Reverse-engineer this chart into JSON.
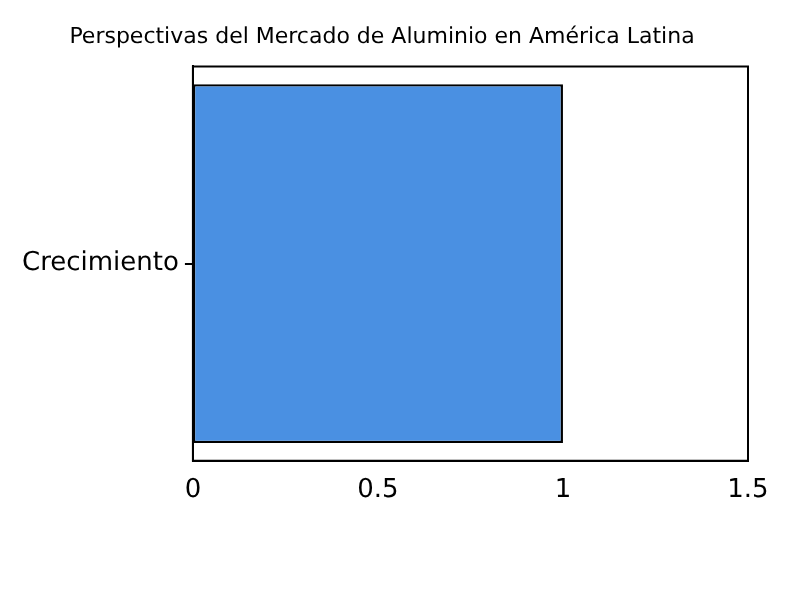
{
  "chart_data": {
    "type": "bar",
    "orientation": "horizontal",
    "title": "Perspectivas del Mercado de Aluminio en América Latina",
    "categories": [
      "Crecimiento"
    ],
    "values": [
      1
    ],
    "color": "#4a90e2",
    "xlim": [
      0,
      1.5
    ],
    "xticks": [
      0,
      0.5,
      1,
      1.5
    ],
    "grid": false,
    "legend": false
  }
}
